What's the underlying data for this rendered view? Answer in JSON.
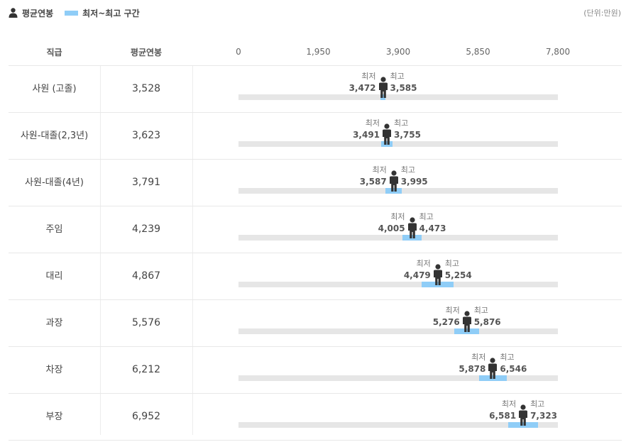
{
  "legend": {
    "avg_label": "평균연봉",
    "range_label": "최저~최고 구간"
  },
  "unit": "(단위:만원)",
  "headers": {
    "rank": "직급",
    "avg": "평균연봉"
  },
  "colors": {
    "range": "#8fcdf7",
    "track": "#e6e6e6",
    "person": "#333333"
  },
  "chart_data": {
    "type": "bar",
    "x_ticks": [
      "0",
      "1,950",
      "3,900",
      "5,850",
      "7,800"
    ],
    "xlim": [
      0,
      7800
    ],
    "min_label": "최저",
    "max_label": "최고",
    "rows": [
      {
        "rank": "사원 (고졸)",
        "avg": 3528,
        "avg_text": "3,528",
        "min": 3472,
        "min_text": "3,472",
        "max": 3585,
        "max_text": "3,585"
      },
      {
        "rank": "사원-대졸(2,3년)",
        "avg": 3623,
        "avg_text": "3,623",
        "min": 3491,
        "min_text": "3,491",
        "max": 3755,
        "max_text": "3,755"
      },
      {
        "rank": "사원-대졸(4년)",
        "avg": 3791,
        "avg_text": "3,791",
        "min": 3587,
        "min_text": "3,587",
        "max": 3995,
        "max_text": "3,995"
      },
      {
        "rank": "주임",
        "avg": 4239,
        "avg_text": "4,239",
        "min": 4005,
        "min_text": "4,005",
        "max": 4473,
        "max_text": "4,473"
      },
      {
        "rank": "대리",
        "avg": 4867,
        "avg_text": "4,867",
        "min": 4479,
        "min_text": "4,479",
        "max": 5254,
        "max_text": "5,254"
      },
      {
        "rank": "과장",
        "avg": 5576,
        "avg_text": "5,576",
        "min": 5276,
        "min_text": "5,276",
        "max": 5876,
        "max_text": "5,876"
      },
      {
        "rank": "차장",
        "avg": 6212,
        "avg_text": "6,212",
        "min": 5878,
        "min_text": "5,878",
        "max": 6546,
        "max_text": "6,546"
      },
      {
        "rank": "부장",
        "avg": 6952,
        "avg_text": "6,952",
        "min": 6581,
        "min_text": "6,581",
        "max": 7323,
        "max_text": "7,323"
      }
    ]
  }
}
